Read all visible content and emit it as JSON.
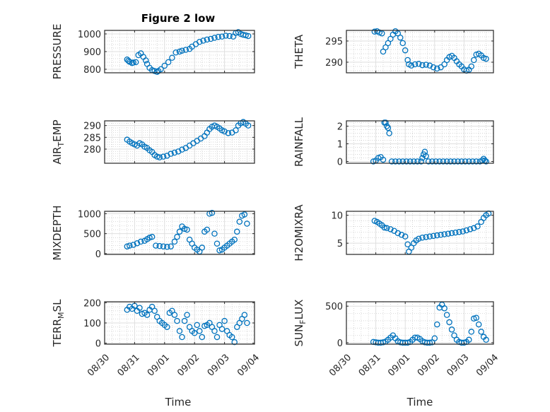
{
  "window": {
    "title": "Figure 2 low"
  },
  "colors": {
    "marker": "#0072BD",
    "axis": "#262626",
    "grid": "#DFDFDF",
    "minor_grid": "#C8C8C8"
  },
  "x_axis": {
    "label": "Time",
    "tick_labels": [
      "08/30",
      "08/31",
      "09/01",
      "09/02",
      "09/03",
      "09/04"
    ],
    "range_days": [
      0,
      5
    ]
  },
  "chart_data": [
    {
      "type": "scatter",
      "name": "pressure",
      "ylabel": "PRESSURE",
      "title": "Figure 2 low",
      "ylim": [
        780,
        1020
      ],
      "yticks": [
        800,
        900,
        1000
      ],
      "grid": true,
      "x": [
        "08/30 18:00",
        "08/30 19:00",
        "08/30 20:00",
        "08/30 22:00",
        "08/30 23:00",
        "08/31 01:00",
        "08/31 03:00",
        "08/31 05:00",
        "08/31 07:00",
        "08/31 09:00",
        "08/31 10:00",
        "08/31 12:00",
        "08/31 14:00",
        "08/31 16:00",
        "08/31 18:00",
        "08/31 19:00",
        "08/31 21:00",
        "09/01 00:00",
        "09/01 03:00",
        "09/01 06:00",
        "09/01 09:00",
        "09/01 12:00",
        "09/01 14:00",
        "09/01 17:00",
        "09/01 20:00",
        "09/01 22:00",
        "09/02 01:00",
        "09/02 04:00",
        "09/02 07:00",
        "09/02 10:00",
        "09/02 13:00",
        "09/02 16:00",
        "09/02 19:00",
        "09/02 22:00",
        "09/03 01:00",
        "09/03 04:00",
        "09/03 07:00",
        "09/03 09:00",
        "09/03 11:00",
        "09/03 13:00",
        "09/03 15:00",
        "09/03 17:00",
        "09/03 19:00"
      ],
      "y": [
        855,
        848,
        842,
        835,
        838,
        840,
        880,
        890,
        870,
        850,
        830,
        808,
        795,
        790,
        785,
        790,
        800,
        820,
        840,
        865,
        895,
        900,
        905,
        910,
        915,
        928,
        942,
        955,
        962,
        968,
        972,
        978,
        983,
        985,
        990,
        988,
        985,
        1005,
        1010,
        1000,
        995,
        992,
        988
      ]
    },
    {
      "type": "scatter",
      "name": "theta",
      "ylabel": "THETA",
      "ylim": [
        287.5,
        297.5
      ],
      "yticks": [
        290,
        295
      ],
      "grid": true,
      "x": [
        "08/30 23:00",
        "08/31 01:00",
        "08/31 03:00",
        "08/31 05:00",
        "08/31 06:00",
        "08/31 08:00",
        "08/31 10:00",
        "08/31 12:00",
        "08/31 14:00",
        "08/31 16:00",
        "08/31 18:00",
        "08/31 20:00",
        "08/31 22:00",
        "09/01 00:00",
        "09/01 02:00",
        "09/01 03:00",
        "09/01 05:00",
        "09/01 08:00",
        "09/01 11:00",
        "09/01 14:00",
        "09/01 17:00",
        "09/01 20:00",
        "09/01 23:00",
        "09/02 02:00",
        "09/02 05:00",
        "09/02 08:00",
        "09/02 10:00",
        "09/02 12:00",
        "09/02 14:00",
        "09/02 16:00",
        "09/02 18:00",
        "09/02 20:00",
        "09/02 22:00",
        "09/03 00:00",
        "09/03 02:00",
        "09/03 04:00",
        "09/03 06:00",
        "09/03 08:00",
        "09/03 10:00",
        "09/03 12:00",
        "09/03 14:00",
        "09/03 16:00",
        "09/03 18:00"
      ],
      "y": [
        297.2,
        297.3,
        297.0,
        296.8,
        292.5,
        293.5,
        294.5,
        295.5,
        296.5,
        297.3,
        296.8,
        295.8,
        294.5,
        292.8,
        290.5,
        289.5,
        289.2,
        289.5,
        289.6,
        289.3,
        289.4,
        289.2,
        288.8,
        288.5,
        288.8,
        289.5,
        290.5,
        291.2,
        291.5,
        291.0,
        290.2,
        289.5,
        289.0,
        288.3,
        288.0,
        288.2,
        289.0,
        290.5,
        291.8,
        292.0,
        291.6,
        291.0,
        290.8
      ]
    },
    {
      "type": "scatter",
      "name": "air_temp",
      "ylabel": "AIR",
      "ylabel_sub": "T",
      "ylabel_tail": "EMP",
      "ylim": [
        274,
        292
      ],
      "yticks": [
        280,
        285,
        290
      ],
      "grid": true,
      "x": [
        "08/30 18:00",
        "08/30 20:00",
        "08/30 22:00",
        "08/31 00:00",
        "08/31 02:00",
        "08/31 04:00",
        "08/31 06:00",
        "08/31 08:00",
        "08/31 10:00",
        "08/31 12:00",
        "08/31 14:00",
        "08/31 16:00",
        "08/31 18:00",
        "08/31 20:00",
        "08/31 23:00",
        "09/01 02:00",
        "09/01 05:00",
        "09/01 08:00",
        "09/01 11:00",
        "09/01 14:00",
        "09/01 17:00",
        "09/01 20:00",
        "09/01 23:00",
        "09/02 02:00",
        "09/02 05:00",
        "09/02 08:00",
        "09/02 10:00",
        "09/02 12:00",
        "09/02 14:00",
        "09/02 16:00",
        "09/02 18:00",
        "09/02 20:00",
        "09/02 22:00",
        "09/03 00:00",
        "09/03 03:00",
        "09/03 06:00",
        "09/03 09:00",
        "09/03 11:00",
        "09/03 13:00",
        "09/03 15:00",
        "09/03 17:00",
        "09/03 19:00"
      ],
      "y": [
        284.0,
        283.2,
        282.5,
        282.0,
        281.5,
        282.5,
        282.0,
        281.0,
        280.5,
        279.5,
        278.8,
        277.5,
        276.8,
        276.5,
        276.8,
        277.2,
        278.0,
        278.5,
        279.0,
        279.8,
        280.5,
        281.5,
        282.5,
        283.5,
        284.5,
        285.5,
        287.0,
        288.5,
        289.5,
        290.0,
        289.5,
        288.8,
        288.0,
        287.5,
        286.8,
        287.0,
        288.0,
        290.0,
        291.0,
        291.5,
        290.8,
        290.0
      ]
    },
    {
      "type": "scatter",
      "name": "rainfall",
      "ylabel": "RAINFALL",
      "ylim": [
        -0.1,
        2.3
      ],
      "yticks": [
        0,
        1,
        2
      ],
      "grid": true,
      "x": [
        "08/30 22:00",
        "08/31 00:00",
        "08/31 02:00",
        "08/31 04:00",
        "08/31 06:00",
        "08/31 07:00",
        "08/31 08:00",
        "08/31 09:00",
        "08/31 10:00",
        "08/31 11:00",
        "08/31 13:00",
        "08/31 16:00",
        "08/31 19:00",
        "08/31 22:00",
        "09/01 01:00",
        "09/01 04:00",
        "09/01 07:00",
        "09/01 10:00",
        "09/01 13:00",
        "09/01 14:00",
        "09/01 15:00",
        "09/01 16:00",
        "09/01 17:00",
        "09/01 19:00",
        "09/01 22:00",
        "09/02 01:00",
        "09/02 04:00",
        "09/02 07:00",
        "09/02 10:00",
        "09/02 13:00",
        "09/02 16:00",
        "09/02 19:00",
        "09/02 22:00",
        "09/03 01:00",
        "09/03 04:00",
        "09/03 07:00",
        "09/03 10:00",
        "09/03 13:00",
        "09/03 15:00",
        "09/03 16:00",
        "09/03 17:00",
        "09/03 18:00"
      ],
      "y": [
        0,
        0.05,
        0.2,
        0.25,
        0.1,
        2.2,
        2.2,
        2.0,
        1.9,
        1.6,
        0,
        0,
        0,
        0,
        0,
        0,
        0,
        0,
        0,
        0.2,
        0.4,
        0.55,
        0.3,
        0,
        0,
        0,
        0,
        0,
        0,
        0,
        0,
        0,
        0,
        0,
        0,
        0,
        0,
        0,
        0.05,
        0.15,
        0.05,
        0
      ]
    },
    {
      "type": "scatter",
      "name": "mixdepth",
      "ylabel": "MIXDEPTH",
      "ylim": [
        -20,
        1060
      ],
      "yticks": [
        0,
        500,
        1000
      ],
      "grid": true,
      "x": [
        "08/30 18:00",
        "08/30 20:00",
        "08/30 23:00",
        "08/31 02:00",
        "08/31 05:00",
        "08/31 08:00",
        "08/31 10:00",
        "08/31 12:00",
        "08/31 14:00",
        "08/31 17:00",
        "08/31 20:00",
        "08/31 23:00",
        "09/01 02:00",
        "09/01 05:00",
        "09/01 08:00",
        "09/01 10:00",
        "09/01 12:00",
        "09/01 14:00",
        "09/01 16:00",
        "09/01 18:00",
        "09/01 20:00",
        "09/01 22:00",
        "09/02 00:00",
        "09/02 02:00",
        "09/02 04:00",
        "09/02 06:00",
        "09/02 08:00",
        "09/02 10:00",
        "09/02 12:00",
        "09/02 14:00",
        "09/02 16:00",
        "09/02 18:00",
        "09/02 20:00",
        "09/02 22:00",
        "09/03 00:00",
        "09/03 02:00",
        "09/03 04:00",
        "09/03 06:00",
        "09/03 08:00",
        "09/03 10:00",
        "09/03 12:00",
        "09/03 14:00",
        "09/03 16:00",
        "09/03 18:00"
      ],
      "y": [
        180,
        200,
        220,
        260,
        300,
        320,
        360,
        400,
        420,
        200,
        190,
        180,
        170,
        180,
        300,
        420,
        550,
        680,
        620,
        600,
        350,
        250,
        150,
        100,
        50,
        150,
        550,
        600,
        1000,
        1020,
        500,
        250,
        80,
        100,
        150,
        200,
        250,
        300,
        350,
        550,
        800,
        950,
        980,
        750
      ]
    },
    {
      "type": "scatter",
      "name": "h2omixra",
      "ylabel": "H2OMIXRA",
      "ylim": [
        3,
        10.7
      ],
      "yticks": [
        5,
        10
      ],
      "grid": true,
      "x": [
        "08/30 23:00",
        "08/31 01:00",
        "08/31 03:00",
        "08/31 05:00",
        "08/31 07:00",
        "08/31 09:00",
        "08/31 12:00",
        "08/31 15:00",
        "08/31 18:00",
        "08/31 21:00",
        "09/01 00:00",
        "09/01 02:00",
        "09/01 03:00",
        "09/01 05:00",
        "09/01 07:00",
        "09/01 09:00",
        "09/01 11:00",
        "09/01 14:00",
        "09/01 17:00",
        "09/01 20:00",
        "09/01 23:00",
        "09/02 02:00",
        "09/02 05:00",
        "09/02 08:00",
        "09/02 11:00",
        "09/02 14:00",
        "09/02 17:00",
        "09/02 20:00",
        "09/02 23:00",
        "09/03 02:00",
        "09/03 05:00",
        "09/03 08:00",
        "09/03 11:00",
        "09/03 14:00",
        "09/03 16:00",
        "09/03 18:00",
        "09/03 20:00"
      ],
      "y": [
        9.0,
        8.8,
        8.5,
        8.2,
        7.8,
        7.7,
        7.5,
        7.2,
        6.8,
        6.5,
        6.2,
        4.8,
        3.5,
        4.2,
        5.0,
        5.5,
        5.8,
        6.0,
        6.1,
        6.2,
        6.3,
        6.4,
        6.5,
        6.6,
        6.7,
        6.8,
        6.9,
        7.0,
        7.1,
        7.3,
        7.5,
        7.7,
        8.0,
        8.8,
        9.5,
        10.0,
        10.3
      ]
    },
    {
      "type": "scatter",
      "name": "terr_msl",
      "ylabel": "TERR",
      "ylabel_sub": "M",
      "ylabel_tail": "SL",
      "ylim": [
        -5,
        205
      ],
      "yticks": [
        0,
        100,
        200
      ],
      "grid": true,
      "x": [
        "08/30 18:00",
        "08/30 20:00",
        "08/30 22:00",
        "08/31 00:00",
        "08/31 02:00",
        "08/31 04:00",
        "08/31 06:00",
        "08/31 08:00",
        "08/31 10:00",
        "08/31 12:00",
        "08/31 14:00",
        "08/31 16:00",
        "08/31 18:00",
        "08/31 20:00",
        "08/31 22:00",
        "09/01 00:00",
        "09/01 02:00",
        "09/01 04:00",
        "09/01 06:00",
        "09/01 08:00",
        "09/01 10:00",
        "09/01 12:00",
        "09/01 14:00",
        "09/01 16:00",
        "09/01 18:00",
        "09/01 20:00",
        "09/01 22:00",
        "09/02 00:00",
        "09/02 02:00",
        "09/02 04:00",
        "09/02 06:00",
        "09/02 08:00",
        "09/02 10:00",
        "09/02 12:00",
        "09/02 14:00",
        "09/02 16:00",
        "09/02 18:00",
        "09/02 20:00",
        "09/02 22:00",
        "09/03 00:00",
        "09/03 02:00",
        "09/03 04:00",
        "09/03 06:00",
        "09/03 08:00",
        "09/03 10:00",
        "09/03 12:00",
        "09/03 14:00",
        "09/03 16:00",
        "09/03 18:00"
      ],
      "y": [
        165,
        180,
        170,
        185,
        160,
        175,
        145,
        150,
        140,
        165,
        180,
        160,
        130,
        110,
        100,
        90,
        80,
        150,
        160,
        140,
        110,
        60,
        30,
        110,
        140,
        80,
        60,
        50,
        90,
        60,
        30,
        85,
        90,
        100,
        80,
        60,
        30,
        90,
        70,
        110,
        60,
        40,
        30,
        5,
        80,
        100,
        120,
        140,
        100
      ]
    },
    {
      "type": "scatter",
      "name": "sun_flux",
      "ylabel": "SUN",
      "ylabel_sub": "F",
      "ylabel_tail": "LUX",
      "ylim": [
        -20,
        560
      ],
      "yticks": [
        0,
        500
      ],
      "grid": true,
      "x": [
        "08/30 22:00",
        "08/31 00:00",
        "08/31 02:00",
        "08/31 04:00",
        "08/31 06:00",
        "08/31 08:00",
        "08/31 10:00",
        "08/31 12:00",
        "08/31 14:00",
        "08/31 16:00",
        "08/31 18:00",
        "08/31 20:00",
        "08/31 22:00",
        "09/01 00:00",
        "09/01 02:00",
        "09/01 04:00",
        "09/01 06:00",
        "09/01 08:00",
        "09/01 10:00",
        "09/01 12:00",
        "09/01 14:00",
        "09/01 16:00",
        "09/01 18:00",
        "09/01 20:00",
        "09/01 22:00",
        "09/02 00:00",
        "09/02 02:00",
        "09/02 04:00",
        "09/02 06:00",
        "09/02 08:00",
        "09/02 10:00",
        "09/02 12:00",
        "09/02 14:00",
        "09/02 16:00",
        "09/02 18:00",
        "09/02 20:00",
        "09/02 22:00",
        "09/03 00:00",
        "09/03 02:00",
        "09/03 04:00",
        "09/03 06:00",
        "09/03 08:00",
        "09/03 10:00",
        "09/03 12:00",
        "09/03 14:00",
        "09/03 16:00",
        "09/03 18:00"
      ],
      "y": [
        10,
        5,
        0,
        0,
        5,
        15,
        40,
        70,
        100,
        60,
        20,
        5,
        0,
        0,
        0,
        10,
        40,
        70,
        70,
        50,
        20,
        5,
        0,
        0,
        5,
        60,
        250,
        480,
        520,
        470,
        380,
        280,
        180,
        100,
        40,
        10,
        0,
        0,
        10,
        40,
        150,
        330,
        340,
        250,
        150,
        80,
        40
      ]
    }
  ]
}
